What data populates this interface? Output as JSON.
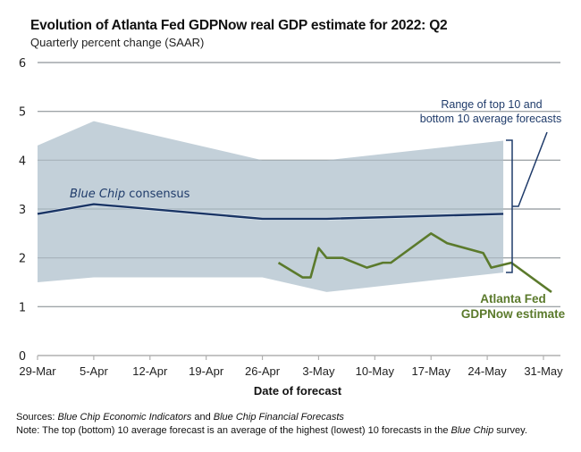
{
  "header": {
    "title": "Evolution of Atlanta Fed GDPNow real GDP estimate for 2022: Q2",
    "subtitle": "Quarterly percent change (SAAR)"
  },
  "footer": {
    "sources_label": "Sources:",
    "sources_italic_1": "Blue Chip Economic Indicators",
    "sources_and": " and ",
    "sources_italic_2": "Blue Chip Financial Forecasts",
    "note_label": "Note:",
    "note_text_1": " The top (bottom) 10 average forecast is an average of the highest (lowest) 10 forecasts in the ",
    "note_italic": "Blue Chip",
    "note_text_2": " survey."
  },
  "colors": {
    "range_fill": "#c3d0d9",
    "consensus_line": "#1a3565",
    "gdpnow_line": "#5b7a2c",
    "gridline": "#a0a0a0",
    "annotation_blue": "#1f3b6a"
  },
  "chart_data": {
    "type": "line",
    "title": "Evolution of Atlanta Fed GDPNow real GDP estimate for 2022: Q2",
    "subtitle": "Quarterly percent change (SAAR)",
    "xlabel": "Date of forecast",
    "ylabel": "",
    "ylim": [
      0,
      6
    ],
    "yticks": [
      "0",
      "1",
      "2",
      "3",
      "4",
      "5",
      "6"
    ],
    "xlim_days": [
      0,
      63
    ],
    "xticks": [
      {
        "day": 0,
        "label": "29-Mar"
      },
      {
        "day": 7,
        "label": "5-Apr"
      },
      {
        "day": 14,
        "label": "12-Apr"
      },
      {
        "day": 21,
        "label": "19-Apr"
      },
      {
        "day": 28,
        "label": "26-Apr"
      },
      {
        "day": 35,
        "label": "3-May"
      },
      {
        "day": 42,
        "label": "10-May"
      },
      {
        "day": 49,
        "label": "17-May"
      },
      {
        "day": 56,
        "label": "24-May"
      },
      {
        "day": 63,
        "label": "31-May"
      }
    ],
    "grid": true,
    "series": [
      {
        "name": "Range of top 10 and bottom 10 average forecasts",
        "kind": "band",
        "x": [
          0,
          7,
          28,
          36,
          58
        ],
        "upper": [
          4.3,
          4.8,
          4.0,
          4.0,
          4.4
        ],
        "lower": [
          1.5,
          1.6,
          1.6,
          1.3,
          1.7
        ]
      },
      {
        "name": "Blue Chip consensus",
        "kind": "line",
        "x": [
          0,
          7,
          28,
          36,
          58
        ],
        "values": [
          2.9,
          3.1,
          2.8,
          2.8,
          2.9
        ]
      },
      {
        "name": "Atlanta Fed GDPNow estimate",
        "kind": "line",
        "x": [
          30,
          33,
          34,
          35,
          36,
          38,
          41,
          43,
          44,
          49,
          51,
          55.5,
          56.5,
          59,
          64
        ],
        "values": [
          1.9,
          1.6,
          1.6,
          2.2,
          2.0,
          2.0,
          1.8,
          1.9,
          1.9,
          2.5,
          2.3,
          2.1,
          1.8,
          1.9,
          1.3
        ]
      }
    ],
    "annotations": [
      {
        "text_italic": "Blue Chip",
        "text": " consensus",
        "target": "Blue Chip consensus"
      },
      {
        "lines": [
          "Range of top 10 and",
          "bottom 10 average forecasts"
        ],
        "target": "range band"
      },
      {
        "lines": [
          "Atlanta Fed",
          "GDPNow estimate"
        ],
        "target": "Atlanta Fed GDPNow estimate"
      }
    ]
  }
}
